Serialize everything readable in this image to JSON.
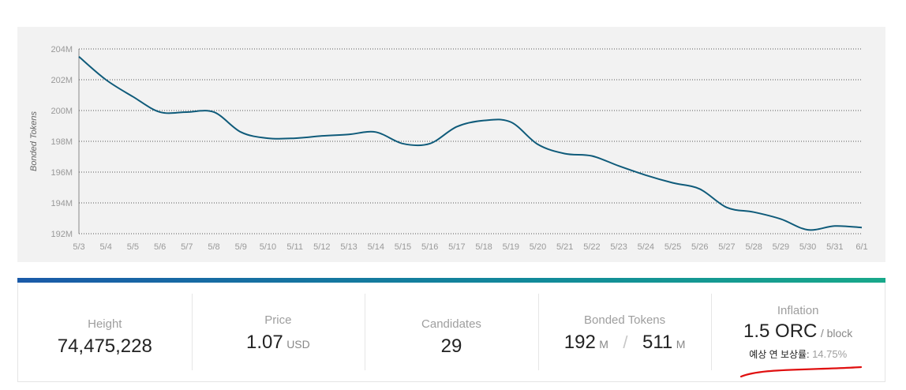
{
  "chart_data": {
    "type": "line",
    "ylabel": "Bonded Tokens",
    "xlabel": "",
    "title": "",
    "x": [
      "5/3",
      "5/4",
      "5/5",
      "5/6",
      "5/7",
      "5/8",
      "5/9",
      "5/10",
      "5/11",
      "5/12",
      "5/13",
      "5/14",
      "5/15",
      "5/16",
      "5/17",
      "5/18",
      "5/19",
      "5/20",
      "5/21",
      "5/22",
      "5/23",
      "5/24",
      "5/25",
      "5/26",
      "5/27",
      "5/28",
      "5/29",
      "5/30",
      "5/31",
      "6/1"
    ],
    "y": [
      203.5,
      202.0,
      200.9,
      199.9,
      199.9,
      199.9,
      198.6,
      198.2,
      198.2,
      198.35,
      198.45,
      198.6,
      197.85,
      197.85,
      198.95,
      199.35,
      199.25,
      197.8,
      197.2,
      197.05,
      196.4,
      195.8,
      195.3,
      194.9,
      193.7,
      193.4,
      192.95,
      192.25,
      192.5,
      192.4
    ],
    "ylim": [
      192,
      204
    ],
    "yticks": [
      "192M",
      "194M",
      "196M",
      "198M",
      "200M",
      "202M",
      "204M"
    ],
    "grid": "horizontal-dotted",
    "line_color": "#0f5b7a"
  },
  "stats": {
    "height": {
      "label": "Height",
      "value": "74,475,228"
    },
    "price": {
      "label": "Price",
      "value": "1.07",
      "unit": "USD"
    },
    "candidates": {
      "label": "Candidates",
      "value": "29"
    },
    "bonded": {
      "label": "Bonded Tokens",
      "value1": "192",
      "unit1": "M",
      "separator": "/",
      "value2": "511",
      "unit2": "M"
    },
    "inflation": {
      "label": "Inflation",
      "value": "1.5 ORC",
      "unit": "/ block",
      "sub_label": "예상 연 보상률:",
      "sub_value": "14.75%"
    }
  },
  "colors": {
    "accent_start": "#1a5aa8",
    "accent_end": "#18a88a",
    "annotation_red": "#e01010"
  }
}
